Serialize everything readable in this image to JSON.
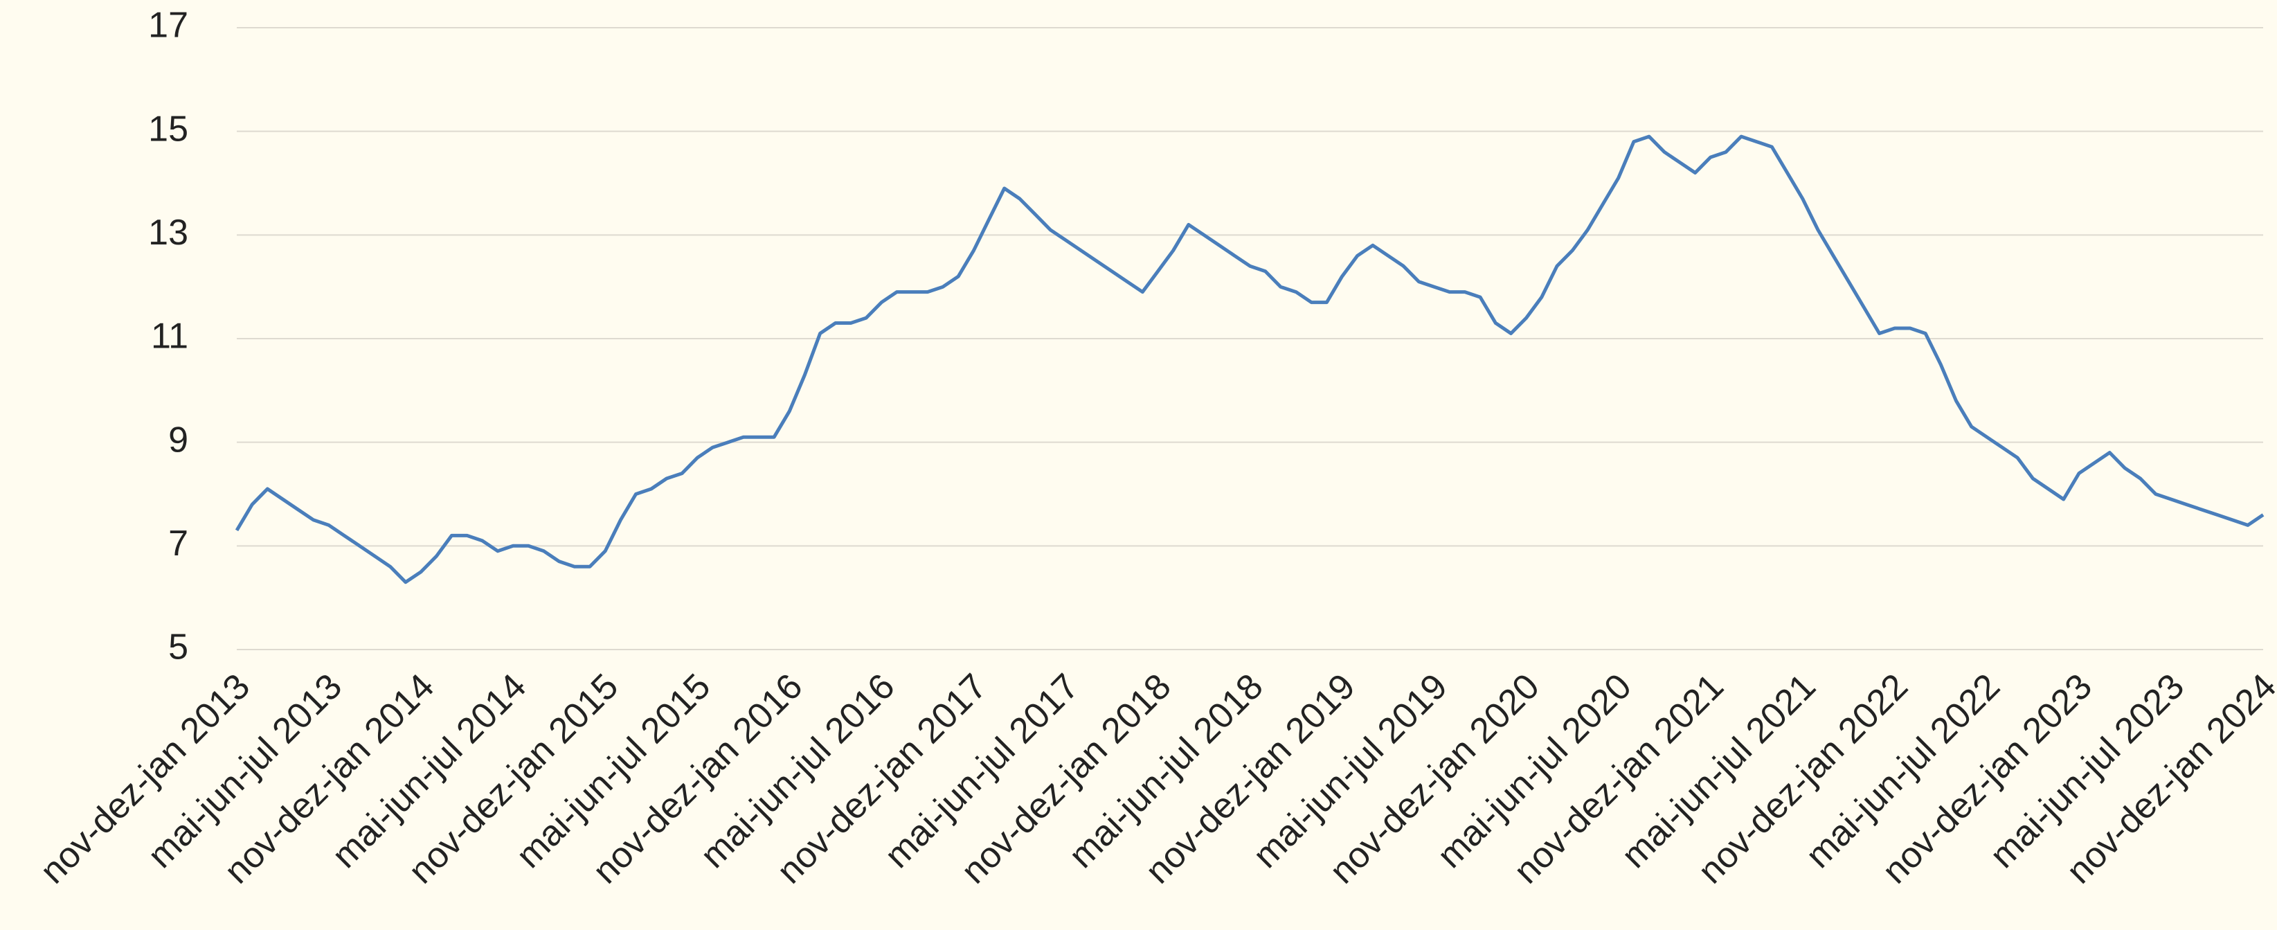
{
  "chart_data": {
    "type": "line",
    "categories": [
      "nov-dez-jan 2013",
      null,
      null,
      null,
      null,
      null,
      "mai-jun-jul 2013",
      null,
      null,
      null,
      null,
      null,
      "nov-dez-jan 2014",
      null,
      null,
      null,
      null,
      null,
      "mai-jun-jul 2014",
      null,
      null,
      null,
      null,
      null,
      "nov-dez-jan 2015",
      null,
      null,
      null,
      null,
      null,
      "mai-jun-jul 2015",
      null,
      null,
      null,
      null,
      null,
      "nov-dez-jan 2016",
      null,
      null,
      null,
      null,
      null,
      "mai-jun-jul 2016",
      null,
      null,
      null,
      null,
      null,
      "nov-dez-jan 2017",
      null,
      null,
      null,
      null,
      null,
      "mai-jun-jul 2017",
      null,
      null,
      null,
      null,
      null,
      "nov-dez-jan 2018",
      null,
      null,
      null,
      null,
      null,
      "mai-jun-jul 2018",
      null,
      null,
      null,
      null,
      null,
      "nov-dez-jan 2019",
      null,
      null,
      null,
      null,
      null,
      "mai-jun-jul 2019",
      null,
      null,
      null,
      null,
      null,
      "nov-dez-jan 2020",
      null,
      null,
      null,
      null,
      null,
      "mai-jun-jul 2020",
      null,
      null,
      null,
      null,
      null,
      "nov-dez-jan 2021",
      null,
      null,
      null,
      null,
      null,
      "mai-jun-jul 2021",
      null,
      null,
      null,
      null,
      null,
      "nov-dez-jan 2022",
      null,
      null,
      null,
      null,
      null,
      "mai-jun-jul 2022",
      null,
      null,
      null,
      null,
      null,
      "nov-dez-jan 2023",
      null,
      null,
      null,
      null,
      null,
      "mai-jun-jul 2023",
      null,
      null,
      null,
      null,
      null,
      "nov-dez-jan 2024"
    ],
    "values": [
      7.3,
      7.8,
      8.1,
      7.9,
      7.7,
      7.5,
      7.4,
      7.2,
      7.0,
      6.8,
      6.6,
      6.3,
      6.5,
      6.8,
      7.2,
      7.2,
      7.1,
      6.9,
      7.0,
      7.0,
      6.9,
      6.7,
      6.6,
      6.6,
      6.9,
      7.5,
      8.0,
      8.1,
      8.3,
      8.4,
      8.7,
      8.9,
      9.0,
      9.1,
      9.1,
      9.1,
      9.6,
      10.3,
      11.1,
      11.3,
      11.3,
      11.4,
      11.7,
      11.9,
      11.9,
      11.9,
      12.0,
      12.2,
      12.7,
      13.3,
      13.9,
      13.7,
      13.4,
      13.1,
      12.9,
      12.7,
      12.5,
      12.3,
      12.1,
      11.9,
      12.3,
      12.7,
      13.2,
      13.0,
      12.8,
      12.6,
      12.4,
      12.3,
      12.0,
      11.9,
      11.7,
      11.7,
      12.2,
      12.6,
      12.8,
      12.6,
      12.4,
      12.1,
      12.0,
      11.9,
      11.9,
      11.8,
      11.3,
      11.1,
      11.4,
      11.8,
      12.4,
      12.7,
      13.1,
      13.6,
      14.1,
      14.8,
      14.9,
      14.6,
      14.4,
      14.2,
      14.5,
      14.6,
      14.9,
      14.8,
      14.7,
      14.2,
      13.7,
      13.1,
      12.6,
      12.1,
      11.6,
      11.1,
      11.2,
      11.2,
      11.1,
      10.5,
      9.8,
      9.3,
      9.1,
      8.9,
      8.7,
      8.3,
      8.1,
      7.9,
      8.4,
      8.6,
      8.8,
      8.5,
      8.3,
      8.0,
      7.9,
      7.8,
      7.7,
      7.6,
      7.5,
      7.4,
      7.6
    ],
    "color": "#4a7ebb",
    "ylim": [
      5,
      17
    ],
    "yticks": [
      5,
      7,
      9,
      11,
      13,
      15,
      17
    ],
    "grid": true
  }
}
